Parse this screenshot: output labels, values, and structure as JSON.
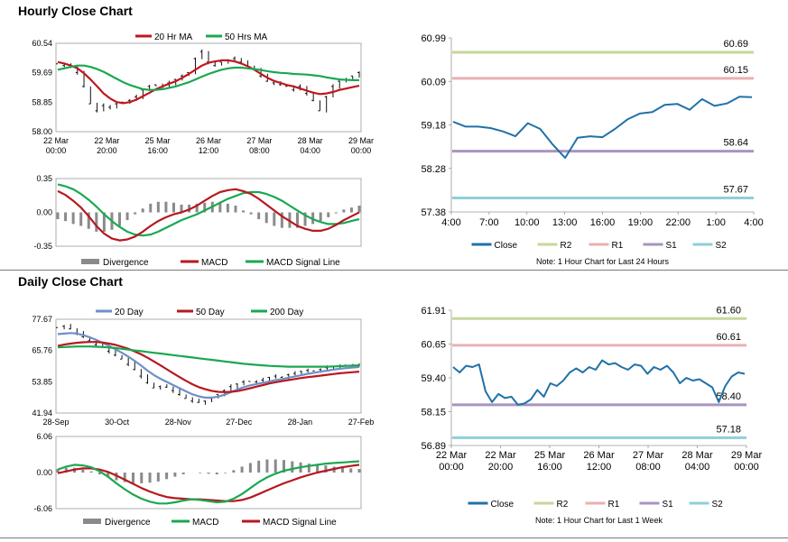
{
  "sections": {
    "hourly_title": "Hourly Close Chart",
    "daily_title": "Daily Close Chart"
  },
  "colors": {
    "ma_short": "#c0161e",
    "ma_long": "#1aa850",
    "ma_daily_20": "#6f8fc6",
    "macd_red": "#b7181f",
    "macd_green": "#1aa850",
    "divergence": "#8a8a8a",
    "close": "#2171a8",
    "r2": "#c6d79a",
    "r1": "#eab0b0",
    "s1": "#a894c0",
    "s2": "#8fcfd8"
  },
  "chart_data": [
    {
      "id": "hourly_price",
      "type": "line",
      "legend": [
        "20 Hr MA",
        "50 Hrs MA"
      ],
      "ylim": [
        58.0,
        60.54
      ],
      "yticks": [
        "60.54",
        "59.69",
        "58.85",
        "58.00"
      ],
      "xticks": [
        [
          "22 Mar",
          "00:00"
        ],
        [
          "22 Mar",
          "20:00"
        ],
        [
          "25 Mar",
          "16:00"
        ],
        [
          "26 Mar",
          "12:00"
        ],
        [
          "27 Mar",
          "08:00"
        ],
        [
          "28 Mar",
          "04:00"
        ],
        [
          "29 Mar",
          "00:00"
        ]
      ],
      "close": [
        59.95,
        59.9,
        59.85,
        59.7,
        59.3,
        58.8,
        58.6,
        58.75,
        58.7,
        58.8,
        58.85,
        58.9,
        59.0,
        59.2,
        59.3,
        59.35,
        59.3,
        59.4,
        59.5,
        59.6,
        59.7,
        60.1,
        60.3,
        60.0,
        59.9,
        60.0,
        60.05,
        60.1,
        60.0,
        59.9,
        59.8,
        59.6,
        59.45,
        59.4,
        59.35,
        59.3,
        59.2,
        59.3,
        59.1,
        58.9,
        58.6,
        59.0,
        59.3,
        59.45,
        59.5,
        59.6,
        59.7
      ],
      "ma20": [
        60.0,
        59.96,
        59.9,
        59.82,
        59.68,
        59.5,
        59.3,
        59.1,
        58.95,
        58.85,
        58.82,
        58.85,
        58.92,
        59.02,
        59.12,
        59.22,
        59.3,
        59.38,
        59.45,
        59.55,
        59.66,
        59.78,
        59.9,
        59.98,
        60.02,
        60.05,
        60.05,
        60.02,
        59.96,
        59.88,
        59.78,
        59.66,
        59.55,
        59.46,
        59.4,
        59.34,
        59.3,
        59.24,
        59.18,
        59.12,
        59.08,
        59.1,
        59.14,
        59.2,
        59.24,
        59.28,
        59.32
      ],
      "ma50": [
        59.78,
        59.82,
        59.86,
        59.9,
        59.9,
        59.86,
        59.8,
        59.72,
        59.62,
        59.52,
        59.42,
        59.34,
        59.28,
        59.22,
        59.2,
        59.2,
        59.22,
        59.26,
        59.3,
        59.36,
        59.42,
        59.5,
        59.58,
        59.66,
        59.72,
        59.78,
        59.82,
        59.84,
        59.84,
        59.82,
        59.8,
        59.77,
        59.74,
        59.71,
        59.69,
        59.68,
        59.66,
        59.65,
        59.64,
        59.62,
        59.6,
        59.56,
        59.53,
        59.5,
        59.49,
        59.48,
        59.48
      ]
    },
    {
      "id": "hourly_macd",
      "type": "line",
      "legend": [
        "Divergence",
        "MACD",
        "MACD Signal Line"
      ],
      "ylim": [
        -0.35,
        0.35
      ],
      "yticks": [
        "0.35",
        "0.00",
        "-0.35"
      ],
      "macd": [
        0.22,
        0.18,
        0.12,
        0.05,
        -0.04,
        -0.14,
        -0.22,
        -0.27,
        -0.29,
        -0.28,
        -0.25,
        -0.2,
        -0.14,
        -0.09,
        -0.05,
        -0.02,
        0.0,
        0.03,
        0.07,
        0.12,
        0.17,
        0.21,
        0.23,
        0.24,
        0.22,
        0.19,
        0.14,
        0.08,
        0.02,
        -0.04,
        -0.09,
        -0.14,
        -0.17,
        -0.19,
        -0.19,
        -0.17,
        -0.13,
        -0.08,
        -0.04,
        0.0
      ],
      "signal": [
        0.29,
        0.27,
        0.24,
        0.19,
        0.13,
        0.06,
        -0.02,
        -0.09,
        -0.15,
        -0.2,
        -0.23,
        -0.24,
        -0.23,
        -0.2,
        -0.16,
        -0.12,
        -0.08,
        -0.05,
        -0.02,
        0.02,
        0.06,
        0.1,
        0.14,
        0.17,
        0.2,
        0.21,
        0.21,
        0.19,
        0.16,
        0.12,
        0.07,
        0.02,
        -0.03,
        -0.07,
        -0.1,
        -0.12,
        -0.12,
        -0.11,
        -0.09,
        -0.07
      ]
    },
    {
      "id": "hourly_pivot",
      "type": "line",
      "legend": [
        "Close",
        "R2",
        "R1",
        "S1",
        "S2"
      ],
      "ylim": [
        57.38,
        60.99
      ],
      "yticks": [
        "60.99",
        "60.09",
        "59.18",
        "58.28",
        "57.38"
      ],
      "xticks": [
        "4:00",
        "7:00",
        "10:00",
        "13:00",
        "16:00",
        "19:00",
        "22:00",
        "1:00",
        "4:00"
      ],
      "close": [
        59.25,
        59.15,
        59.15,
        59.12,
        59.05,
        58.95,
        59.22,
        59.1,
        58.78,
        58.5,
        58.92,
        58.95,
        58.93,
        59.1,
        59.3,
        59.42,
        59.45,
        59.6,
        59.62,
        59.5,
        59.72,
        59.58,
        59.63,
        59.77,
        59.76
      ],
      "levels": {
        "R2": 60.69,
        "R1": 60.15,
        "S1": 58.64,
        "S2": 57.67
      },
      "level_labels": [
        "60.69",
        "60.15",
        "58.64",
        "57.67"
      ],
      "note": "Note: 1 Hour Chart for Last 24 Hours"
    },
    {
      "id": "daily_price",
      "type": "line",
      "legend": [
        "20 Day",
        "50 Day",
        "200 Day"
      ],
      "ylim": [
        41.94,
        77.67
      ],
      "yticks": [
        "77.67",
        "65.76",
        "53.85",
        "41.94"
      ],
      "xticks": [
        "28-Sep",
        "30-Oct",
        "28-Nov",
        "27-Dec",
        "28-Jan",
        "27-Feb"
      ],
      "close": [
        74.5,
        75.0,
        74.0,
        72.5,
        71.0,
        69.5,
        68.0,
        67.0,
        65.5,
        64.0,
        62.5,
        60.5,
        58.5,
        56.0,
        53.5,
        51.5,
        52.0,
        51.8,
        50.5,
        49.0,
        47.5,
        46.5,
        46.0,
        46.5,
        47.5,
        49.0,
        50.5,
        52.0,
        53.0,
        53.8,
        54.0,
        53.8,
        54.5,
        55.5,
        56.0,
        55.5,
        56.5,
        57.0,
        57.8,
        58.2,
        58.0,
        58.5,
        59.2,
        59.5,
        59.8,
        60.2,
        60.0,
        59.8
      ],
      "ma20": [
        72.0,
        72.2,
        72.4,
        72.2,
        71.6,
        70.8,
        69.8,
        68.7,
        67.5,
        66.2,
        64.9,
        63.4,
        61.8,
        60.0,
        58.1,
        56.4,
        55.0,
        53.8,
        52.6,
        51.4,
        50.2,
        49.1,
        48.3,
        47.8,
        47.8,
        48.2,
        48.9,
        49.9,
        50.9,
        51.8,
        52.5,
        53.0,
        53.5,
        54.0,
        54.5,
        54.9,
        55.4,
        55.9,
        56.4,
        56.9,
        57.3,
        57.7,
        58.1,
        58.5,
        58.8,
        59.1,
        59.3,
        59.5
      ],
      "ma50": [
        67.5,
        68.0,
        68.4,
        68.7,
        68.9,
        69.0,
        69.0,
        68.8,
        68.4,
        67.9,
        67.2,
        66.4,
        65.4,
        64.3,
        63.0,
        61.6,
        60.1,
        58.6,
        57.1,
        55.6,
        54.2,
        52.9,
        51.8,
        51.0,
        50.4,
        50.0,
        49.9,
        50.0,
        50.3,
        50.8,
        51.4,
        52.0,
        52.6,
        53.2,
        53.7,
        54.1,
        54.5,
        54.9,
        55.3,
        55.6,
        55.9,
        56.2,
        56.5,
        56.8,
        57.1,
        57.3,
        57.5,
        57.7
      ],
      "ma200": [
        67.0,
        67.1,
        67.2,
        67.3,
        67.3,
        67.3,
        67.2,
        67.1,
        66.9,
        66.7,
        66.4,
        66.1,
        65.8,
        65.5,
        65.2,
        64.9,
        64.6,
        64.3,
        64.0,
        63.7,
        63.4,
        63.1,
        62.8,
        62.5,
        62.2,
        61.9,
        61.6,
        61.3,
        61.0,
        60.7,
        60.5,
        60.3,
        60.1,
        59.9,
        59.8,
        59.7,
        59.6,
        59.6,
        59.6,
        59.6,
        59.6,
        59.6,
        59.6,
        59.7,
        59.8,
        59.9,
        60.0,
        60.1
      ]
    },
    {
      "id": "daily_macd",
      "type": "line",
      "legend": [
        "Divergence",
        "MACD",
        "MACD Signal Line"
      ],
      "ylim": [
        -6.06,
        6.06
      ],
      "yticks": [
        "6.06",
        "0.00",
        "-6.06"
      ],
      "macd": [
        0.5,
        1.0,
        1.3,
        1.2,
        0.9,
        0.2,
        -0.7,
        -1.8,
        -2.8,
        -3.7,
        -4.4,
        -4.9,
        -5.2,
        -5.2,
        -5.0,
        -4.7,
        -4.5,
        -4.6,
        -4.8,
        -5.0,
        -4.9,
        -4.4,
        -3.6,
        -2.6,
        -1.6,
        -0.8,
        -0.2,
        0.3,
        0.6,
        0.9,
        1.1,
        1.3,
        1.5,
        1.6,
        1.7,
        1.8,
        1.9
      ],
      "signal": [
        -0.1,
        0.2,
        0.5,
        0.7,
        0.7,
        0.5,
        0.1,
        -0.5,
        -1.2,
        -1.9,
        -2.6,
        -3.2,
        -3.7,
        -4.1,
        -4.3,
        -4.4,
        -4.5,
        -4.5,
        -4.6,
        -4.7,
        -4.8,
        -4.8,
        -4.6,
        -4.2,
        -3.6,
        -3.0,
        -2.4,
        -1.8,
        -1.3,
        -0.8,
        -0.4,
        0.0,
        0.3,
        0.6,
        0.9,
        1.1,
        1.3
      ]
    },
    {
      "id": "daily_pivot",
      "type": "line",
      "legend": [
        "Close",
        "R2",
        "R1",
        "S1",
        "S2"
      ],
      "ylim": [
        56.89,
        61.91
      ],
      "yticks": [
        "61.91",
        "60.65",
        "59.40",
        "58.15",
        "56.89"
      ],
      "xticks": [
        [
          "22 Mar",
          "00:00"
        ],
        [
          "22 Mar",
          "20:00"
        ],
        [
          "25 Mar",
          "16:00"
        ],
        [
          "26 Mar",
          "12:00"
        ],
        [
          "27 Mar",
          "08:00"
        ],
        [
          "28 Mar",
          "04:00"
        ],
        [
          "29 Mar",
          "00:00"
        ]
      ],
      "close": [
        59.8,
        59.6,
        59.85,
        59.8,
        59.9,
        58.9,
        58.5,
        58.8,
        58.65,
        58.7,
        58.4,
        58.45,
        58.6,
        58.95,
        58.7,
        59.2,
        59.1,
        59.3,
        59.6,
        59.75,
        59.6,
        59.8,
        59.7,
        60.05,
        59.9,
        59.95,
        59.8,
        59.7,
        59.9,
        59.85,
        59.55,
        59.8,
        59.7,
        59.85,
        59.6,
        59.2,
        59.4,
        59.3,
        59.35,
        59.2,
        59.05,
        58.5,
        59.1,
        59.45,
        59.6,
        59.55
      ],
      "levels": {
        "R2": 61.6,
        "R1": 60.61,
        "S1": 58.4,
        "S2": 57.18
      },
      "level_labels": [
        "61.60",
        "60.61",
        "58.40",
        "57.18"
      ],
      "note": "Note: 1 Hour Chart for Last 1 Week"
    }
  ]
}
